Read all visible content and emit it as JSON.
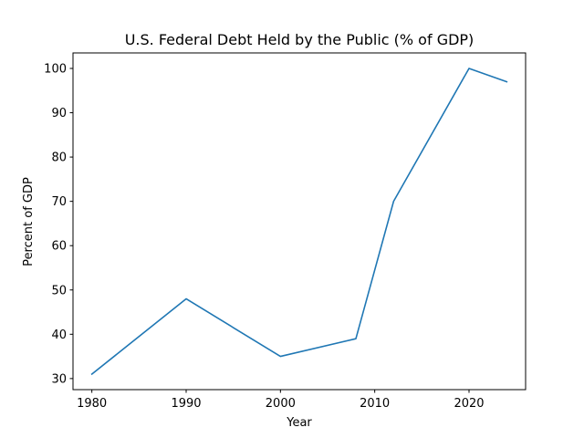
{
  "chart_data": {
    "type": "line",
    "title": "U.S. Federal Debt Held by the Public (% of GDP)",
    "xlabel": "Year",
    "ylabel": "Percent of GDP",
    "x": [
      1980,
      1990,
      2000,
      2008,
      2012,
      2020,
      2024
    ],
    "series": [
      {
        "values": [
          31,
          48,
          35,
          39,
          70,
          100,
          97
        ],
        "color": "#1f77b4"
      }
    ],
    "xlim": [
      1978,
      2026
    ],
    "ylim": [
      27.5,
      103.5
    ],
    "xticks": [
      1980,
      1990,
      2000,
      2010,
      2020
    ],
    "yticks": [
      30,
      40,
      50,
      60,
      70,
      80,
      90,
      100
    ],
    "grid": false,
    "legend": "none"
  }
}
